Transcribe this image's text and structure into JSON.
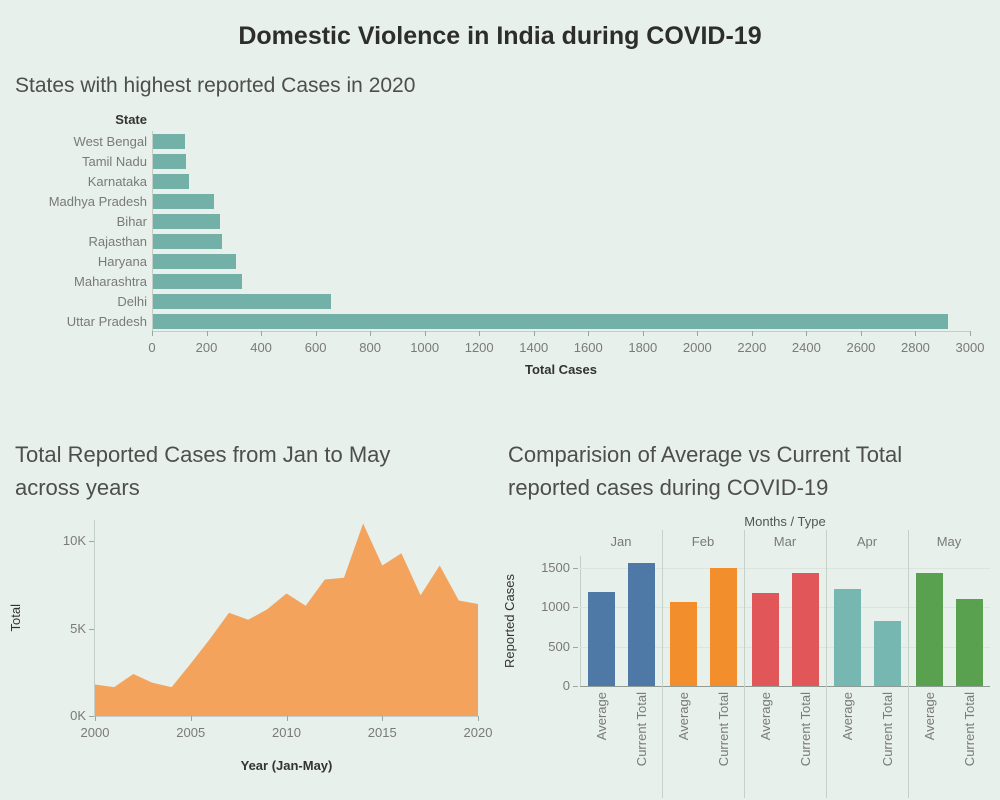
{
  "page": {
    "title": "Domestic Violence in India during COVID-19"
  },
  "colors": {
    "background": "#e7f0ea",
    "teal_bar": "#73b1a8",
    "area_orange": "#f3a35c",
    "month_palette": [
      "#4e79a7",
      "#f28e2b",
      "#e15759",
      "#76b7b2",
      "#59a14f"
    ]
  },
  "chart_data": [
    {
      "type": "bar",
      "orientation": "horizontal",
      "title": "States with highest reported Cases in 2020",
      "category_axis_title": "State",
      "categories": [
        "West Bengal",
        "Tamil Nadu",
        "Karnataka",
        "Madhya Pradesh",
        "Bihar",
        "Rajasthan",
        "Haryana",
        "Maharashtra",
        "Delhi",
        "Uttar Pradesh"
      ],
      "values": [
        120,
        123,
        135,
        228,
        250,
        255,
        308,
        330,
        655,
        2920
      ],
      "xlabel": "Total Cases",
      "xlim": [
        0,
        3000
      ],
      "xtick_step": 200,
      "grid": false,
      "bar_color": "#73b1a8"
    },
    {
      "type": "area",
      "title": "Total Reported Cases from Jan to May across years",
      "title_lines": [
        "Total Reported Cases from Jan to May",
        "across years"
      ],
      "xlabel": "Year (Jan-May)",
      "ylabel": "Total",
      "x": [
        2000,
        2001,
        2002,
        2003,
        2004,
        2005,
        2006,
        2007,
        2008,
        2009,
        2010,
        2011,
        2012,
        2013,
        2014,
        2015,
        2016,
        2017,
        2018,
        2019,
        2020
      ],
      "values": [
        1800,
        1650,
        2400,
        1900,
        1650,
        3000,
        4400,
        5900,
        5500,
        6100,
        7000,
        6300,
        7800,
        7900,
        11000,
        8600,
        9300,
        6900,
        8600,
        6600,
        6400
      ],
      "xticks": [
        2000,
        2005,
        2010,
        2015,
        2020
      ],
      "yticks": [
        {
          "value": 0,
          "label": "0K"
        },
        {
          "value": 5000,
          "label": "5K"
        },
        {
          "value": 10000,
          "label": "10K"
        }
      ],
      "ylim": [
        0,
        11200
      ],
      "area_color": "#f3a35c"
    },
    {
      "type": "bar",
      "subtype": "grouped",
      "title": "Comparision of Average vs Current Total reported cases during COVID-19",
      "title_lines": [
        "Comparision of Average vs Current Total",
        "reported cases during COVID-19"
      ],
      "column_header": "Months / Type",
      "ylabel": "Reported Cases",
      "categories": [
        "Jan",
        "Feb",
        "Mar",
        "Apr",
        "May"
      ],
      "series_labels": [
        "Average",
        "Current Total"
      ],
      "values": [
        [
          1190,
          1560
        ],
        [
          1070,
          1500
        ],
        [
          1180,
          1430
        ],
        [
          1230,
          820
        ],
        [
          1430,
          1100
        ]
      ],
      "yticks": [
        0,
        500,
        1000,
        1500
      ],
      "ylim": [
        0,
        1650
      ],
      "bar_colors": [
        "#4e79a7",
        "#f28e2b",
        "#e15759",
        "#76b7b2",
        "#59a14f"
      ]
    }
  ]
}
